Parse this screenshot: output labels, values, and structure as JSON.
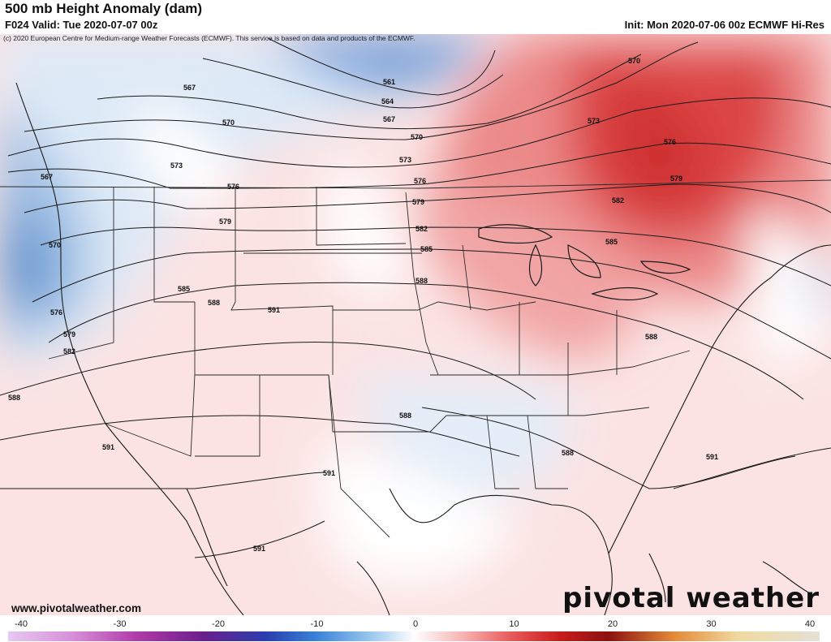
{
  "header": {
    "title": "500 mb Height Anomaly (dam)",
    "valid": "F024 Valid: Tue 2020-07-07 00z",
    "init": "Init: Mon 2020-07-06 00z ECMWF Hi-Res",
    "copyright": "(c) 2020 European Centre for Medium-range Weather Forecasts (ECMWF). This service is based on data and products of the ECMWF."
  },
  "footer": {
    "website": "www.pivotalweather.com",
    "logo": "pivotal weather"
  },
  "colorbar": {
    "ticks": [
      "-40",
      "-30",
      "-20",
      "-10",
      "0",
      "10",
      "20",
      "30",
      "40"
    ]
  },
  "contours": {
    "l561": "561",
    "l564": "564",
    "l567a": "567",
    "l567b": "567",
    "l567c": "567",
    "l570a": "570",
    "l570b": "570",
    "l570c": "570",
    "l570d": "570",
    "l573a": "573",
    "l573b": "573",
    "l573c": "573",
    "l576a": "576",
    "l576b": "576",
    "l576c": "576",
    "l576d": "576",
    "l579a": "579",
    "l579b": "579",
    "l579c": "579",
    "l579d": "579",
    "l582a": "582",
    "l582b": "582",
    "l582c": "582",
    "l585a": "585",
    "l585b": "585",
    "l585c": "585",
    "l588a": "588",
    "l588b": "588",
    "l588c": "588",
    "l588d": "588",
    "l588e": "588",
    "l588f": "588",
    "l591a": "591",
    "l591b": "591",
    "l591c": "591",
    "l591d": "591",
    "l591e": "591"
  },
  "colors": {
    "deep_red": "#d63b3b",
    "light_red": "#f6c9c9",
    "light_blue": "#c9dcf0",
    "deep_blue": "#4f86c8"
  }
}
